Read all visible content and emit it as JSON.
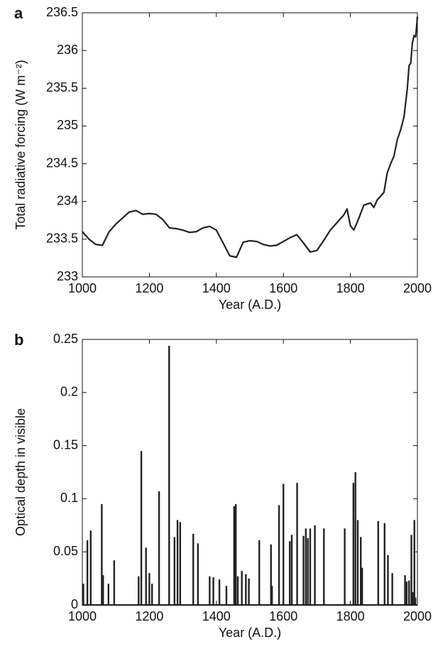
{
  "chart_data": [
    {
      "type": "line",
      "label": "a",
      "xlabel": "Year (A.D.)",
      "ylabel": "Total radiative forcing (W m⁻²)",
      "color": "#222222",
      "x": [
        1000,
        1020,
        1040,
        1060,
        1080,
        1100,
        1120,
        1140,
        1160,
        1180,
        1200,
        1220,
        1240,
        1260,
        1280,
        1300,
        1320,
        1340,
        1360,
        1380,
        1400,
        1420,
        1440,
        1460,
        1480,
        1500,
        1520,
        1540,
        1560,
        1580,
        1600,
        1620,
        1640,
        1660,
        1680,
        1700,
        1720,
        1740,
        1760,
        1780,
        1790,
        1800,
        1810,
        1820,
        1840,
        1860,
        1870,
        1880,
        1900,
        1910,
        1920,
        1930,
        1940,
        1950,
        1960,
        1970,
        1975,
        1980,
        1985,
        1990,
        1995,
        2000
      ],
      "values": [
        233.6,
        233.5,
        233.43,
        233.42,
        233.6,
        233.7,
        233.78,
        233.86,
        233.88,
        233.83,
        233.84,
        233.83,
        233.76,
        233.65,
        233.64,
        233.62,
        233.59,
        233.6,
        233.65,
        233.67,
        233.62,
        233.45,
        233.28,
        233.26,
        233.46,
        233.48,
        233.47,
        233.43,
        233.41,
        233.42,
        233.47,
        233.52,
        233.56,
        233.45,
        233.33,
        233.35,
        233.48,
        233.62,
        233.72,
        233.82,
        233.9,
        233.68,
        233.62,
        233.72,
        233.95,
        233.98,
        233.92,
        234.02,
        234.12,
        234.38,
        234.5,
        234.6,
        234.82,
        234.95,
        235.12,
        235.5,
        235.8,
        235.83,
        236.1,
        236.2,
        236.18,
        236.45
      ],
      "xlim": [
        1000,
        2000
      ],
      "xticks": [
        1000,
        1200,
        1400,
        1600,
        1800,
        2000
      ],
      "ylim": [
        233,
        236.5
      ],
      "yticks": [
        233,
        233.5,
        234,
        234.5,
        235,
        235.5,
        236,
        236.5
      ]
    },
    {
      "type": "stem",
      "label": "b",
      "xlabel": "Year (A.D.)",
      "ylabel": "Optical depth in visible",
      "color": "#222222",
      "x": [
        1003,
        1015,
        1025,
        1058,
        1062,
        1078,
        1095,
        1168,
        1176,
        1190,
        1200,
        1208,
        1229,
        1259,
        1275,
        1284,
        1292,
        1331,
        1345,
        1380,
        1391,
        1409,
        1430,
        1453,
        1458,
        1464,
        1476,
        1488,
        1497,
        1528,
        1563,
        1566,
        1587,
        1600,
        1619,
        1625,
        1641,
        1660,
        1667,
        1673,
        1680,
        1694,
        1721,
        1783,
        1809,
        1815,
        1822,
        1831,
        1835,
        1883,
        1902,
        1912,
        1925,
        1963,
        1968,
        1975,
        1982,
        1986,
        1991,
        1994
      ],
      "values": [
        0.02,
        0.061,
        0.07,
        0.095,
        0.028,
        0.02,
        0.042,
        0.027,
        0.145,
        0.054,
        0.03,
        0.02,
        0.107,
        0.244,
        0.064,
        0.08,
        0.078,
        0.067,
        0.058,
        0.027,
        0.026,
        0.024,
        0.018,
        0.093,
        0.095,
        0.027,
        0.032,
        0.029,
        0.025,
        0.061,
        0.057,
        0.018,
        0.094,
        0.114,
        0.06,
        0.066,
        0.115,
        0.065,
        0.072,
        0.063,
        0.072,
        0.075,
        0.072,
        0.072,
        0.115,
        0.125,
        0.08,
        0.064,
        0.035,
        0.079,
        0.077,
        0.047,
        0.03,
        0.028,
        0.022,
        0.023,
        0.066,
        0.012,
        0.08,
        0.007
      ],
      "xlim": [
        1000,
        2000
      ],
      "xticks": [
        1000,
        1200,
        1400,
        1600,
        1800,
        2000
      ],
      "ylim": [
        0,
        0.25
      ],
      "yticks": [
        0,
        0.05,
        0.1,
        0.15,
        0.2,
        0.25
      ]
    }
  ]
}
